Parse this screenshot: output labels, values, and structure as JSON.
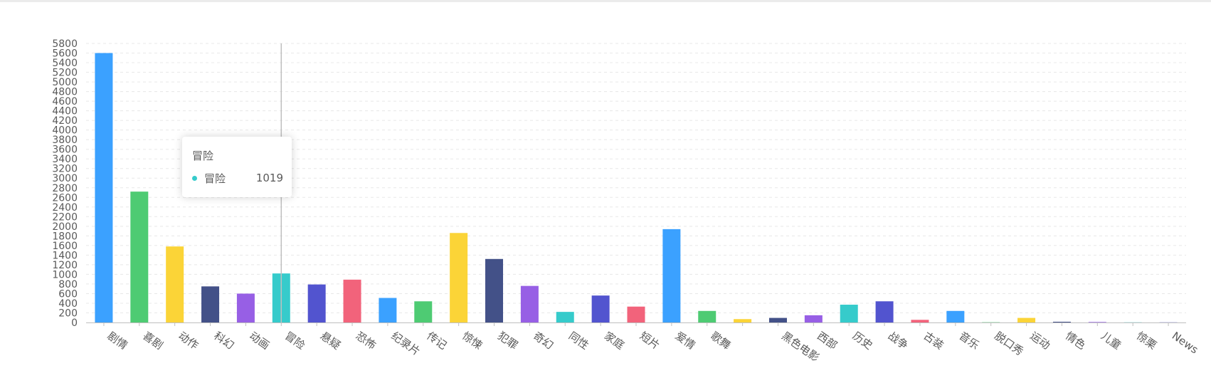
{
  "chart_data": {
    "type": "bar",
    "categories": [
      "剧情",
      "喜剧",
      "动作",
      "科幻",
      "动画",
      "冒险",
      "悬疑",
      "恐怖",
      "纪录片",
      "传记",
      "惊悚",
      "犯罪",
      "奇幻",
      "同性",
      "家庭",
      "短片",
      "爱情",
      "歌舞",
      "",
      "黑色电影",
      "西部",
      "历史",
      "战争",
      "古装",
      "音乐",
      "脱口秀",
      "运动",
      "情色",
      "儿童",
      "惊栗",
      "News"
    ],
    "values": [
      5600,
      2720,
      1580,
      750,
      600,
      1019,
      790,
      890,
      510,
      440,
      1860,
      1320,
      760,
      220,
      560,
      330,
      1940,
      240,
      70,
      95,
      150,
      370,
      440,
      55,
      240,
      5,
      95,
      15,
      10,
      3,
      3
    ],
    "colors": [
      "#3BA1FF",
      "#4ECB73",
      "#FBD437",
      "#435188",
      "#975FE5",
      "#36CBCB",
      "#5254CF",
      "#F2637B"
    ],
    "ylim": [
      0,
      5800
    ],
    "ytick_step": 200,
    "grid": true
  },
  "tooltip": {
    "title": "冒险",
    "series_name": "冒险",
    "value": "1019",
    "color": "#36CBCB"
  },
  "highlight_category": "冒险"
}
